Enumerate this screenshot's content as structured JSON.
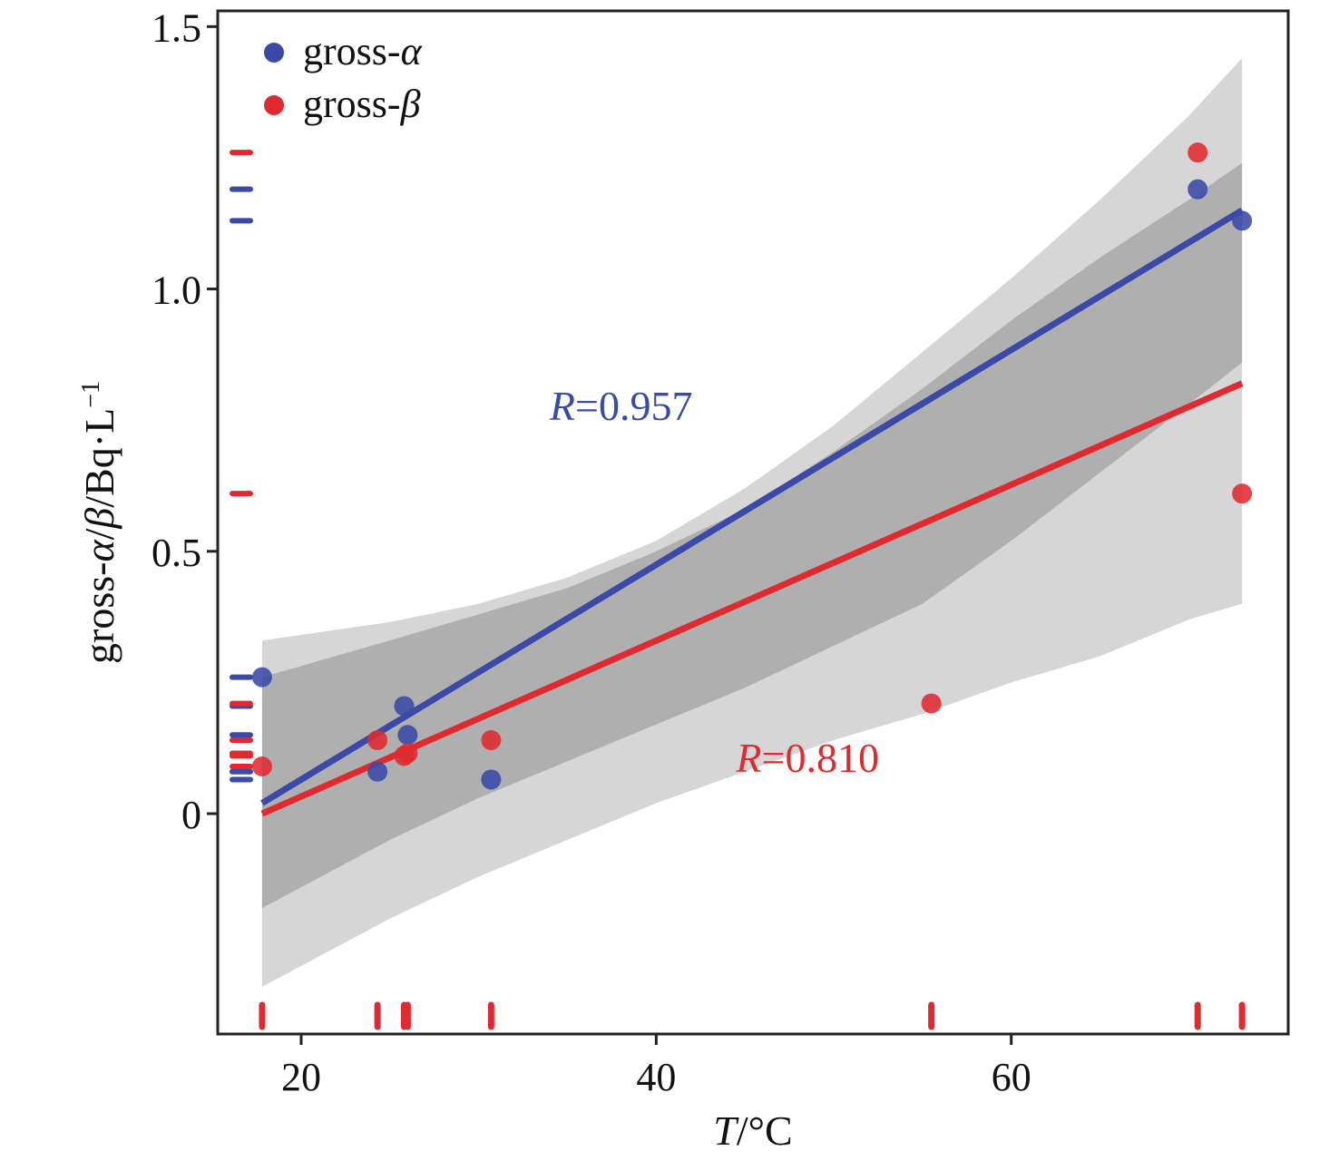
{
  "chart_data": {
    "type": "scatter",
    "xlabel": {
      "italic": "T",
      "rest": "/°C"
    },
    "ylabel": {
      "p1": "gross-",
      "it1": "α",
      "p2": "/",
      "it2": "β",
      "p3": "/Bq·L",
      "sup": "−1"
    },
    "x_ticks": [
      20,
      40,
      60
    ],
    "y_ticks": [
      0,
      0.5,
      1.0,
      1.5
    ],
    "y_tick_labels": [
      "0",
      "0.5",
      "1.0",
      "1.5"
    ],
    "xlim": [
      15.3,
      75.6
    ],
    "ylim": [
      -0.42,
      1.53
    ],
    "legend": {
      "position": "top-left"
    },
    "colors": {
      "alpha": "#3a4aa6",
      "beta": "#e02a30",
      "band_outer": "#d6d6d6",
      "band_inner": "#a8a8a8"
    },
    "series": [
      {
        "key": "alpha",
        "name": "gross-α",
        "color": "#3a4aa6",
        "x": [
          17.8,
          24.3,
          25.8,
          26.0,
          30.7,
          70.5,
          73.0
        ],
        "y": [
          0.26,
          0.08,
          0.205,
          0.15,
          0.065,
          1.19,
          1.13
        ],
        "fit": {
          "x": [
            17.8,
            73.0
          ],
          "y": [
            0.02,
            1.15
          ]
        },
        "R_label": {
          "italic": "R",
          "rest": "=0.957",
          "x": 34,
          "y": 0.75
        }
      },
      {
        "key": "beta",
        "name": "gross-β",
        "color": "#e02a30",
        "x": [
          17.8,
          24.3,
          25.8,
          26.0,
          30.7,
          55.5,
          70.5,
          73.0
        ],
        "y": [
          0.09,
          0.14,
          0.11,
          0.115,
          0.14,
          0.21,
          1.26,
          0.61
        ],
        "fit": {
          "x": [
            17.8,
            73.0
          ],
          "y": [
            0.0,
            0.82
          ]
        },
        "R_label": {
          "italic": "R",
          "rest": "=0.810",
          "x": 44.5,
          "y": 0.08
        }
      }
    ],
    "confidence_bands": [
      {
        "level": "outer",
        "x": [
          17.8,
          25,
          30,
          35,
          40,
          45,
          50,
          55,
          60,
          65,
          70,
          73.0
        ],
        "upper": [
          0.33,
          0.365,
          0.4,
          0.45,
          0.52,
          0.62,
          0.74,
          0.88,
          1.02,
          1.17,
          1.33,
          1.44
        ],
        "lower": [
          -0.33,
          -0.2,
          -0.12,
          -0.05,
          0.02,
          0.08,
          0.14,
          0.19,
          0.25,
          0.3,
          0.37,
          0.4
        ]
      },
      {
        "level": "inner",
        "x": [
          17.8,
          25,
          30,
          35,
          40,
          45,
          50,
          55,
          60,
          65,
          70,
          73.0
        ],
        "upper": [
          0.26,
          0.33,
          0.38,
          0.43,
          0.5,
          0.58,
          0.69,
          0.81,
          0.94,
          1.06,
          1.17,
          1.24
        ],
        "lower": [
          -0.18,
          -0.05,
          0.03,
          0.1,
          0.17,
          0.24,
          0.32,
          0.4,
          0.52,
          0.65,
          0.78,
          0.86
        ]
      }
    ]
  }
}
